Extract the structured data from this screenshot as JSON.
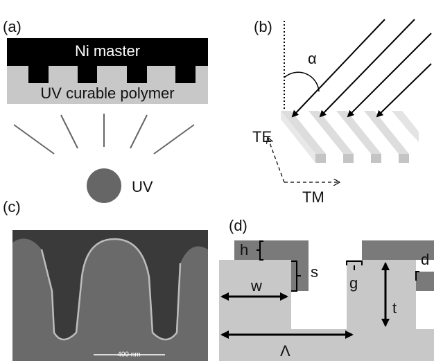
{
  "panel_a": {
    "label": "(a)",
    "master": "Ni master",
    "polymer": "UV curable polymer",
    "source": "UV"
  },
  "panel_b": {
    "label": "(b)",
    "angle": "α",
    "te": "TE",
    "tm": "TM"
  },
  "panel_c": {
    "label": "(c)",
    "scale_bar": "400 nm"
  },
  "panel_d": {
    "label": "(d)",
    "h": "h",
    "s": "s",
    "w": "w",
    "g": "g",
    "t": "t",
    "d": "d",
    "period": "Λ"
  }
}
